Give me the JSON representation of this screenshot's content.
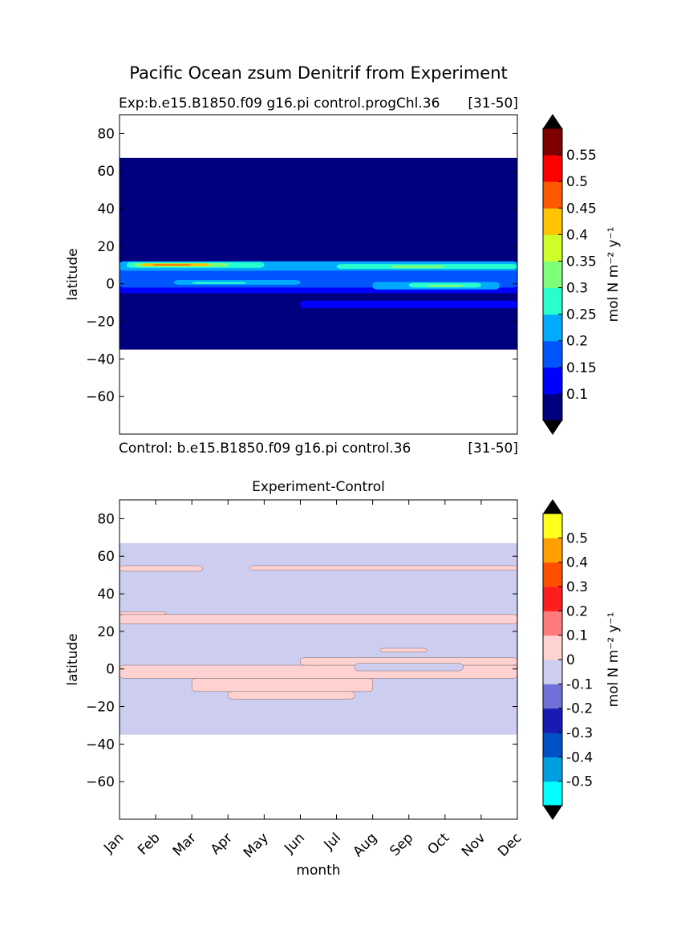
{
  "figure": {
    "suptitle": "Pacific Ocean zsum Denitrif from Experiment"
  },
  "chart_data": [
    {
      "type": "heatmap",
      "panel": "experiment",
      "title_left": "Exp:b.e15.B1850.f09 g16.pi control.progChl.36",
      "title_right": "[31-50]",
      "bottom_left": "Control: b.e15.B1850.f09 g16.pi control.36",
      "bottom_right": "[31-50]",
      "xlabel": "",
      "ylabel": "latitude",
      "xlim": [
        0,
        11
      ],
      "ylim": [
        -80,
        90
      ],
      "y_ticks": [
        80,
        60,
        40,
        20,
        0,
        -20,
        -40,
        -60
      ],
      "y_tick_labels": [
        "80",
        "60",
        "40",
        "20",
        "0",
        "−20",
        "−40",
        "−60"
      ],
      "data_lat_range": [
        -35,
        67
      ],
      "background_level_color": "#00007f",
      "bands": [
        {
          "color": "#0000ff",
          "x": [
            0,
            11
          ],
          "y": [
            -5,
            12
          ]
        },
        {
          "color": "#0055ff",
          "x": [
            0,
            11
          ],
          "y": [
            -2,
            10
          ]
        },
        {
          "color": "#00aaff",
          "x": [
            0,
            11
          ],
          "y": [
            7,
            12
          ]
        },
        {
          "color": "#28ffce",
          "x": [
            0.2,
            4
          ],
          "y": [
            8.5,
            11.5
          ]
        },
        {
          "color": "#7dff7a",
          "x": [
            0.4,
            3
          ],
          "y": [
            9,
            11
          ]
        },
        {
          "color": "#ffc400",
          "x": [
            0.6,
            2.5
          ],
          "y": [
            9.5,
            10.8
          ]
        },
        {
          "color": "#ff5900",
          "x": [
            0.9,
            2
          ],
          "y": [
            9.8,
            10.4
          ]
        },
        {
          "color": "#28ffce",
          "x": [
            6,
            11
          ],
          "y": [
            8,
            10.5
          ]
        },
        {
          "color": "#7dff7a",
          "x": [
            7.5,
            9
          ],
          "y": [
            8.5,
            9.8
          ]
        },
        {
          "color": "#00aaff",
          "x": [
            1.5,
            5
          ],
          "y": [
            -0.5,
            2
          ]
        },
        {
          "color": "#28ffce",
          "x": [
            2,
            3.5
          ],
          "y": [
            0,
            1
          ]
        },
        {
          "color": "#00aaff",
          "x": [
            7,
            10.5
          ],
          "y": [
            -3,
            1
          ]
        },
        {
          "color": "#28ffce",
          "x": [
            8,
            10
          ],
          "y": [
            -2,
            0.5
          ]
        },
        {
          "color": "#7dff7a",
          "x": [
            8.5,
            9.5
          ],
          "y": [
            -1.5,
            -0.5
          ]
        },
        {
          "color": "#0000ff",
          "x": [
            5,
            11
          ],
          "y": [
            -13,
            -9
          ]
        }
      ],
      "colorbar": {
        "label": "mol N m⁻² y⁻¹",
        "tick_labels": [
          "0.1",
          "0.15",
          "0.2",
          "0.25",
          "0.3",
          "0.35",
          "0.4",
          "0.45",
          "0.5",
          "0.55"
        ],
        "colors": [
          "#00007f",
          "#0000ff",
          "#0055ff",
          "#00aaff",
          "#28ffce",
          "#7dff7a",
          "#ceff28",
          "#ffc400",
          "#ff5900",
          "#ff0000",
          "#7f0000"
        ],
        "extend_color": "#000000"
      }
    },
    {
      "type": "heatmap",
      "panel": "difference",
      "title": "Experiment-Control",
      "xlabel": "month",
      "ylabel": "latitude",
      "xlim": [
        0,
        11
      ],
      "ylim": [
        -80,
        90
      ],
      "x_categories": [
        "Jan",
        "Feb",
        "Mar",
        "Apr",
        "May",
        "Jun",
        "Jul",
        "Aug",
        "Sep",
        "Oct",
        "Nov",
        "Dec"
      ],
      "y_ticks": [
        80,
        60,
        40,
        20,
        0,
        -20,
        -40,
        -60
      ],
      "y_tick_labels": [
        "80",
        "60",
        "40",
        "20",
        "0",
        "−20",
        "−40",
        "−60"
      ],
      "data_lat_range": [
        -35,
        67
      ],
      "background_level_color": "#cccdef",
      "bands": [
        {
          "color": "#ffd1d1",
          "x": [
            0,
            2.3
          ],
          "y": [
            52,
            55
          ]
        },
        {
          "color": "#ffd1d1",
          "x": [
            3.6,
            11
          ],
          "y": [
            52.5,
            55
          ]
        },
        {
          "color": "#ffd1d1",
          "x": [
            0,
            11
          ],
          "y": [
            24,
            29
          ]
        },
        {
          "color": "#ffd1d1",
          "x": [
            0,
            1.3
          ],
          "y": [
            29,
            30.5
          ]
        },
        {
          "color": "#ffd1d1",
          "x": [
            7.2,
            8.5
          ],
          "y": [
            9,
            11
          ]
        },
        {
          "color": "#ffd1d1",
          "x": [
            0,
            11
          ],
          "y": [
            -5,
            2
          ]
        },
        {
          "color": "#ffd1d1",
          "x": [
            2,
            7
          ],
          "y": [
            -12,
            -5
          ]
        },
        {
          "color": "#ffd1d1",
          "x": [
            3,
            6.5
          ],
          "y": [
            -16,
            -12
          ]
        },
        {
          "color": "#ffd1d1",
          "x": [
            5,
            11
          ],
          "y": [
            2,
            6
          ]
        },
        {
          "color": "#cccdef",
          "x": [
            6.5,
            9.5
          ],
          "y": [
            -1,
            3
          ]
        }
      ],
      "colorbar": {
        "label": "mol N m⁻² y⁻¹",
        "tick_labels": [
          "-0.5",
          "-0.4",
          "-0.3",
          "-0.2",
          "-0.1",
          "0",
          "0.1",
          "0.2",
          "0.3",
          "0.4",
          "0.5"
        ],
        "colors": [
          "#00ffff",
          "#00a0e0",
          "#0050c8",
          "#1919b4",
          "#7070d8",
          "#cccdef",
          "#ffd1d1",
          "#ff7a7a",
          "#ff1e1e",
          "#ff5000",
          "#ffa000",
          "#ffff1e"
        ],
        "extend_color": "#000000"
      }
    }
  ]
}
